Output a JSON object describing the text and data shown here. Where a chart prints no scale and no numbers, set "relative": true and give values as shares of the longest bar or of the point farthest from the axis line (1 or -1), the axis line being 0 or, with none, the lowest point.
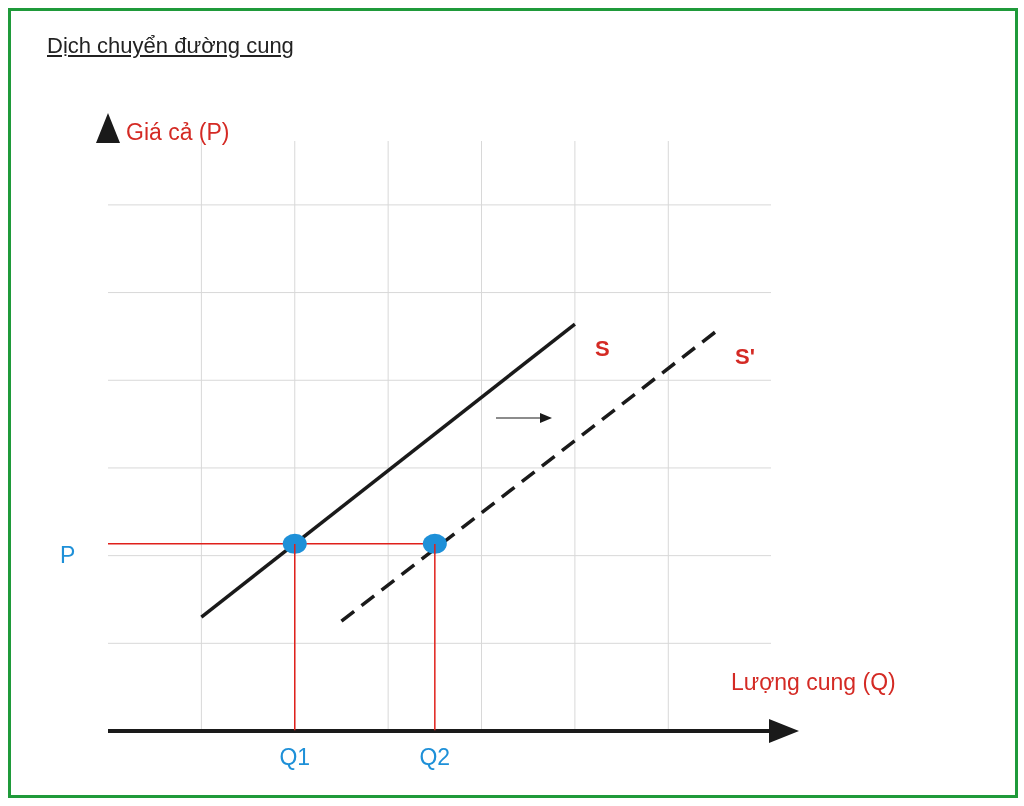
{
  "chart_data": {
    "type": "line",
    "title": "Dịch chuyển đường cung",
    "xlabel": "Lượng cung (Q)",
    "relative": true,
    "grid": true,
    "categories": [
      null,
      null,
      null,
      null,
      "Q1",
      null,
      null,
      "Q2",
      null,
      null,
      null,
      null,
      null,
      null,
      null
    ],
    "annotations": [
      "P",
      "Giá cả (P)"
    ],
    "series": [
      {
        "name": "S",
        "color": "#1a1a1a",
        "line_style": "solid",
        "values": [
          null,
          null,
          0.28,
          null,
          null,
          null,
          null,
          null,
          null,
          null,
          1,
          null,
          null,
          null,
          null
        ]
      },
      {
        "name": "S'",
        "color": "#1a1a1a",
        "line_style": "dashed",
        "values": [
          null,
          null,
          null,
          null,
          null,
          0.27,
          null,
          null,
          null,
          null,
          null,
          null,
          null,
          0.98,
          null
        ]
      },
      {
        "color": "#e0201b",
        "line_style": "solid",
        "values": [
          0.46,
          null,
          null,
          null,
          null,
          null,
          null,
          0.46,
          null,
          null,
          null,
          null,
          null,
          null,
          null
        ]
      },
      {
        "type": "scatter",
        "color": "#1e90d8",
        "marker": "circle",
        "values": [
          null,
          null,
          null,
          null,
          0.46,
          null,
          null,
          0.46,
          null,
          null,
          null,
          null,
          null,
          null,
          null
        ]
      }
    ]
  }
}
